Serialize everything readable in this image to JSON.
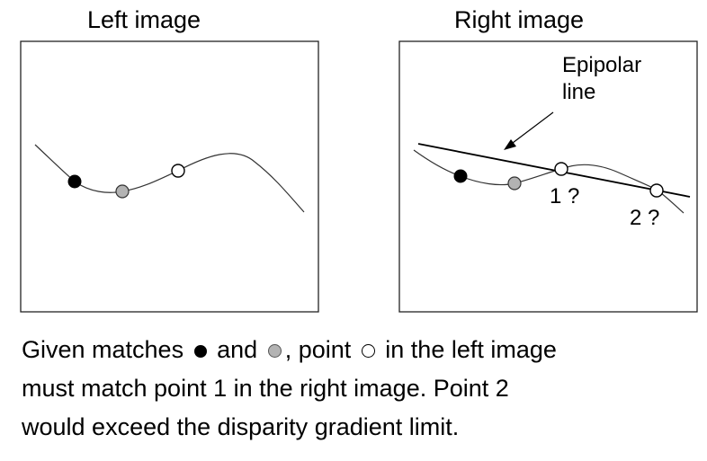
{
  "left_panel": {
    "title": "Left image"
  },
  "right_panel": {
    "title": "Right image",
    "epipolar_label_line1": "Epipolar",
    "epipolar_label_line2": "line",
    "candidate_1_label": "1 ?",
    "candidate_2_label": "2 ?"
  },
  "markers": {
    "filled": "black",
    "gray": "#b3b3b3",
    "open": "white"
  },
  "caption": {
    "part1": "Given matches",
    "part2": "and",
    "part3": ", point",
    "part4": "in the left image",
    "line2": "must match point 1 in the right image. Point 2",
    "line3": "would exceed the disparity gradient limit."
  }
}
